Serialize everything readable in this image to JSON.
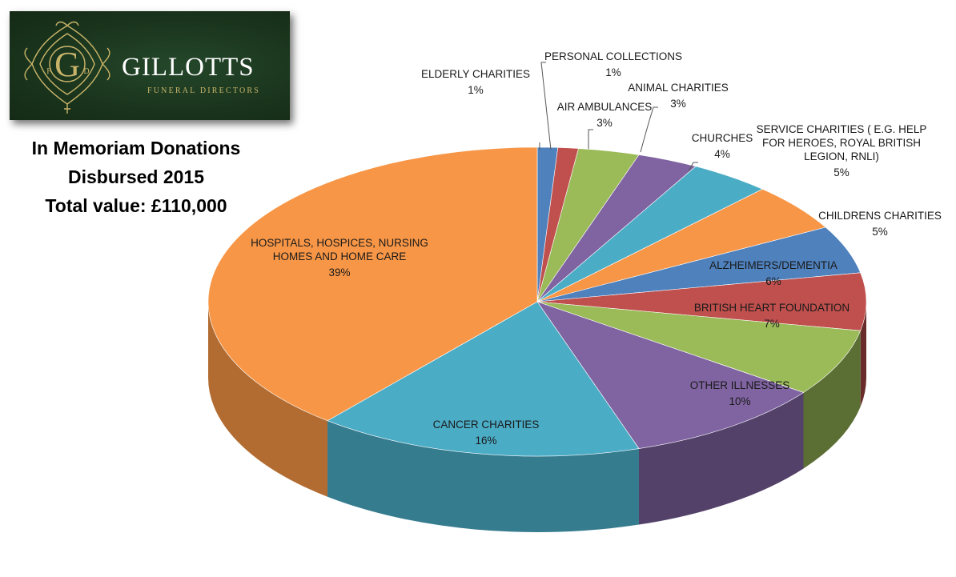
{
  "logo": {
    "monogram_letter": "G",
    "monogram_left": "F",
    "monogram_right": "D",
    "name": "GILLOTTS",
    "subtitle": "FUNERAL DIRECTORS"
  },
  "chart_data": {
    "type": "pie",
    "title_lines": [
      "In Memoriam Donations",
      "Disbursed 2015",
      "Total value: £110,000"
    ],
    "slices": [
      {
        "name": [
          "ELDERLY CHARITIES"
        ],
        "label": "1%",
        "value": 1,
        "color": "#4F81BD"
      },
      {
        "name": [
          "PERSONAL COLLECTIONS"
        ],
        "label": "1%",
        "value": 1,
        "color": "#C0504D"
      },
      {
        "name": [
          "AIR AMBULANCES"
        ],
        "label": "3%",
        "value": 3,
        "color": "#9BBB59"
      },
      {
        "name": [
          "ANIMAL CHARITIES"
        ],
        "label": "3%",
        "value": 3,
        "color": "#8064A2"
      },
      {
        "name": [
          "CHURCHES"
        ],
        "label": "4%",
        "value": 4,
        "color": "#4BACC6"
      },
      {
        "name": [
          "SERVICE CHARITIES ( E.G. HELP",
          "FOR HEROES, ROYAL BRITISH",
          "LEGION, RNLI)"
        ],
        "label": "5%",
        "value": 5,
        "color": "#F79646"
      },
      {
        "name": [
          "CHILDRENS CHARITIES"
        ],
        "label": "5%",
        "value": 5,
        "color": "#4F81BD"
      },
      {
        "name": [
          "ALZHEIMERS/DEMENTIA"
        ],
        "label": "6%",
        "value": 6,
        "color": "#C0504D"
      },
      {
        "name": [
          "BRITISH HEART FOUNDATION"
        ],
        "label": "7%",
        "value": 7,
        "color": "#9BBB59"
      },
      {
        "name": [
          "OTHER ILLNESSES"
        ],
        "label": "10%",
        "value": 10,
        "color": "#8064A2"
      },
      {
        "name": [
          "CANCER CHARITIES"
        ],
        "label": "16%",
        "value": 16,
        "color": "#4BACC6"
      },
      {
        "name": [
          "HOSPITALS, HOSPICES, NURSING",
          "HOMES AND HOME CARE"
        ],
        "label": "39%",
        "value": 39,
        "color": "#F79646"
      }
    ]
  }
}
